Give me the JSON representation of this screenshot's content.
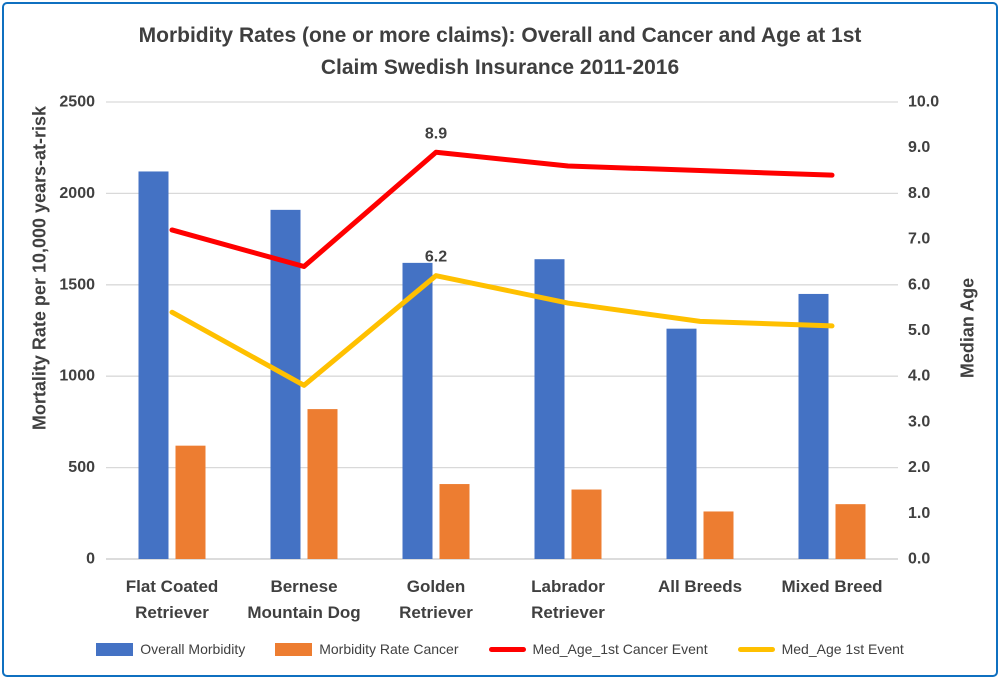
{
  "title_lines": [
    "Morbidity Rates (one or more claims): Overall and Cancer and Age at 1st",
    "Claim Swedish Insurance 2011-2016"
  ],
  "chart_data": {
    "type": "bar",
    "subtype": "combo bar + line, dual y-axes",
    "title": "Morbidity Rates (one or more claims): Overall and Cancer and Age at 1st Claim Swedish Insurance 2011-2016",
    "categories": [
      "Flat Coated Retriever",
      "Bernese Mountain Dog",
      "Golden Retriever",
      "Labrador Retriever",
      "All Breeds",
      "Mixed Breed"
    ],
    "category_label_lines": [
      [
        "Flat Coated",
        "Retriever"
      ],
      [
        "Bernese",
        "Mountain Dog"
      ],
      [
        "Golden",
        "Retriever"
      ],
      [
        "Labrador",
        "Retriever"
      ],
      [
        "All Breeds"
      ],
      [
        "Mixed Breed"
      ]
    ],
    "left_axis": {
      "title": "Mortality Rate per 10,000 years-at-risk",
      "ticks": [
        "0",
        "500",
        "1000",
        "1500",
        "2000",
        "2500"
      ],
      "range": [
        0,
        2500
      ]
    },
    "right_axis": {
      "title": "Median Age",
      "ticks": [
        "0.0",
        "1.0",
        "2.0",
        "3.0",
        "4.0",
        "5.0",
        "6.0",
        "7.0",
        "8.0",
        "9.0",
        "10.0"
      ],
      "range": [
        0,
        10
      ]
    },
    "series": [
      {
        "name": "Overall Morbidity",
        "type": "bar",
        "axis": "left",
        "color": "#4472C4",
        "values": [
          2120,
          1910,
          1620,
          1640,
          1260,
          1450
        ]
      },
      {
        "name": "Morbidity Rate Cancer",
        "type": "bar",
        "axis": "left",
        "color": "#ED7D31",
        "values": [
          620,
          820,
          410,
          380,
          260,
          300
        ]
      },
      {
        "name": "Med_Age_1st Cancer Event",
        "type": "line",
        "axis": "right",
        "color": "#FF0000",
        "values": [
          7.2,
          6.4,
          8.9,
          8.6,
          8.5,
          8.4
        ]
      },
      {
        "name": "Med_Age 1st Event",
        "type": "line",
        "axis": "right",
        "color": "#FFC000",
        "values": [
          5.4,
          3.8,
          6.2,
          5.6,
          5.2,
          5.1
        ]
      }
    ],
    "data_labels": [
      {
        "series_index": 2,
        "category_index": 2,
        "text": "8.9"
      },
      {
        "series_index": 3,
        "category_index": 2,
        "text": "6.2"
      }
    ],
    "legend_position": "bottom",
    "grid": "horizontal gridlines only"
  },
  "colors": {
    "frame_border": "#0F70C0",
    "text": "#404040",
    "gridline": "#D9D9D9",
    "axis_line": "#C6C6C6",
    "bar_blue": "#4472C4",
    "bar_orange": "#ED7D31",
    "line_red": "#FF0000",
    "line_yellow": "#FFC000"
  }
}
